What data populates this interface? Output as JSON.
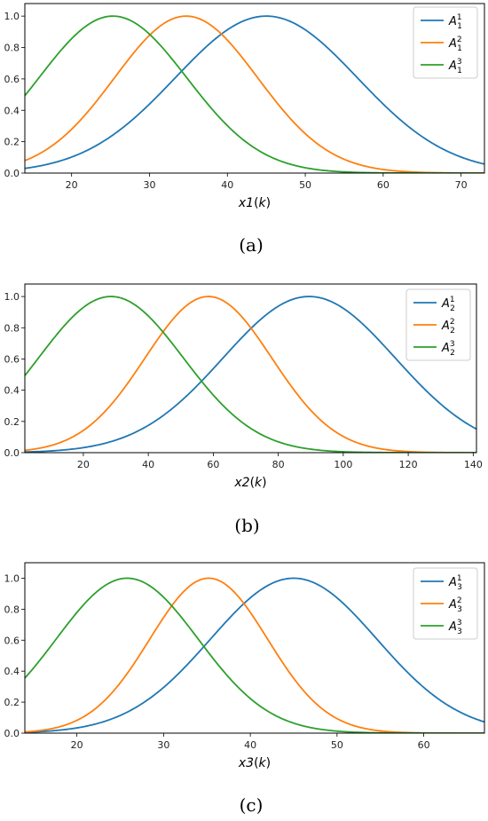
{
  "chart_data": [
    {
      "type": "line",
      "caption": "(a)",
      "xlabel_var": "x1",
      "xlabel_arg": "k",
      "xlim": [
        14,
        73
      ],
      "ylim": [
        0,
        1.08
      ],
      "xticks": [
        20,
        30,
        40,
        50,
        60,
        70
      ],
      "yticks": [
        0.0,
        0.2,
        0.4,
        0.6,
        0.8,
        1.0
      ],
      "ytick_labels": [
        "0.0",
        "0.2",
        "0.4",
        "0.6",
        "0.8",
        "1.0"
      ],
      "legend_position": "top-right",
      "series": [
        {
          "name_base": "A",
          "name_sub": "1",
          "name_sup": "1",
          "color": "#1f77b4",
          "center": 45,
          "sigma": 11.7
        },
        {
          "name_base": "A",
          "name_sub": "1",
          "name_sup": "2",
          "color": "#ff7f0e",
          "center": 34.7,
          "sigma": 9.2
        },
        {
          "name_base": "A",
          "name_sub": "1",
          "name_sup": "3",
          "color": "#2ca02c",
          "center": 25.3,
          "sigma": 9.5
        }
      ]
    },
    {
      "type": "line",
      "caption": "(b)",
      "xlabel_var": "x2",
      "xlabel_arg": "k",
      "xlim": [
        2,
        141
      ],
      "ylim": [
        0,
        1.08
      ],
      "xticks": [
        20,
        40,
        60,
        80,
        100,
        120,
        140
      ],
      "yticks": [
        0.0,
        0.2,
        0.4,
        0.6,
        0.8,
        1.0
      ],
      "ytick_labels": [
        "0.0",
        "0.2",
        "0.4",
        "0.6",
        "0.8",
        "1.0"
      ],
      "legend_position": "top-right",
      "series": [
        {
          "name_base": "A",
          "name_sub": "2",
          "name_sup": "1",
          "color": "#1f77b4",
          "center": 89.5,
          "sigma": 26.5
        },
        {
          "name_base": "A",
          "name_sub": "2",
          "name_sup": "2",
          "color": "#ff7f0e",
          "center": 58.5,
          "sigma": 19.5
        },
        {
          "name_base": "A",
          "name_sub": "2",
          "name_sup": "3",
          "color": "#2ca02c",
          "center": 28.5,
          "sigma": 22.3
        }
      ]
    },
    {
      "type": "line",
      "caption": "(c)",
      "xlabel_var": "x3",
      "xlabel_arg": "k",
      "xlim": [
        14,
        67
      ],
      "ylim": [
        0,
        1.1
      ],
      "xticks": [
        20,
        30,
        40,
        50,
        60
      ],
      "yticks": [
        0.0,
        0.2,
        0.4,
        0.6,
        0.8,
        1.0
      ],
      "ytick_labels": [
        "0.0",
        "0.2",
        "0.4",
        "0.6",
        "0.8",
        "1.0"
      ],
      "legend_position": "top-right",
      "series": [
        {
          "name_base": "A",
          "name_sub": "3",
          "name_sup": "1",
          "color": "#1f77b4",
          "center": 45,
          "sigma": 9.6
        },
        {
          "name_base": "A",
          "name_sub": "3",
          "name_sup": "2",
          "color": "#ff7f0e",
          "center": 35.2,
          "sigma": 6.8
        },
        {
          "name_base": "A",
          "name_sub": "3",
          "name_sup": "3",
          "color": "#2ca02c",
          "center": 25.8,
          "sigma": 8.2
        }
      ]
    }
  ]
}
